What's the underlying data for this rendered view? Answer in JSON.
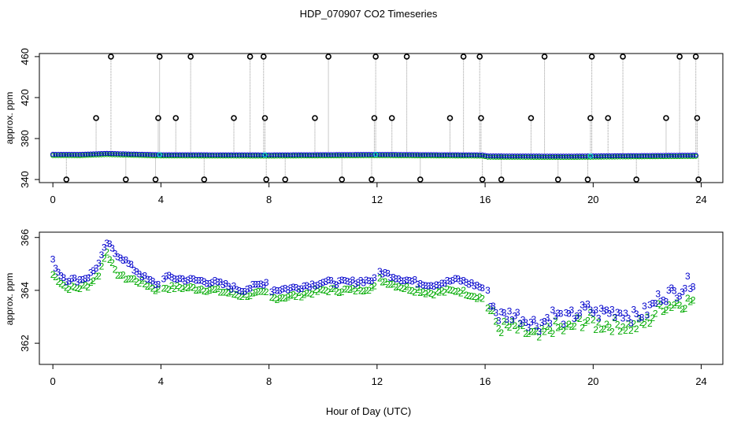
{
  "title": "HDP_070907  CO2 Timeseries",
  "colors": {
    "axis": "#000000",
    "spike": "#000000",
    "blue": "#0000cc",
    "green": "#00aa00",
    "cyan": "#00cccc",
    "stem": "#999999"
  },
  "chart_data": [
    {
      "type": "scatter",
      "panel": "top",
      "title": "HDP_070907  CO2 Timeseries",
      "xlabel": "",
      "ylabel": "approx. ppm",
      "xlim": [
        -0.5,
        24.8
      ],
      "ylim": [
        337,
        463
      ],
      "x_ticks": [
        0,
        4,
        8,
        12,
        16,
        20,
        24
      ],
      "y_ticks": [
        340,
        380,
        420,
        460
      ],
      "x_tick_labels": [
        "0",
        "4",
        "8",
        "12",
        "16",
        "20",
        "24"
      ],
      "y_tick_labels": [
        "340",
        "380",
        "420",
        "460"
      ],
      "baseline": [
        [
          0,
          364.6
        ],
        [
          1,
          364.5
        ],
        [
          2,
          365.5
        ],
        [
          3,
          364.8
        ],
        [
          4,
          364.2
        ],
        [
          8,
          364.0
        ],
        [
          12,
          364.5
        ],
        [
          15.9,
          364.0
        ],
        [
          16.1,
          363.0
        ],
        [
          19,
          362.8
        ],
        [
          20,
          363.0
        ],
        [
          24,
          363.8
        ]
      ],
      "spikes": [
        {
          "x": 0.5,
          "y": 340
        },
        {
          "x": 1.6,
          "y": 400
        },
        {
          "x": 2.15,
          "y": 460
        },
        {
          "x": 2.7,
          "y": 340
        },
        {
          "x": 3.8,
          "y": 340
        },
        {
          "x": 3.9,
          "y": 400
        },
        {
          "x": 3.95,
          "y": 460
        },
        {
          "x": 4.55,
          "y": 400
        },
        {
          "x": 5.1,
          "y": 460
        },
        {
          "x": 5.6,
          "y": 340
        },
        {
          "x": 6.7,
          "y": 400
        },
        {
          "x": 7.3,
          "y": 460
        },
        {
          "x": 7.8,
          "y": 460
        },
        {
          "x": 7.85,
          "y": 400
        },
        {
          "x": 7.9,
          "y": 340
        },
        {
          "x": 8.6,
          "y": 340
        },
        {
          "x": 9.7,
          "y": 400
        },
        {
          "x": 10.2,
          "y": 460
        },
        {
          "x": 10.7,
          "y": 340
        },
        {
          "x": 11.8,
          "y": 340
        },
        {
          "x": 11.9,
          "y": 400
        },
        {
          "x": 11.95,
          "y": 460
        },
        {
          "x": 12.55,
          "y": 400
        },
        {
          "x": 13.1,
          "y": 460
        },
        {
          "x": 13.6,
          "y": 340
        },
        {
          "x": 14.7,
          "y": 400
        },
        {
          "x": 15.2,
          "y": 460
        },
        {
          "x": 15.8,
          "y": 460
        },
        {
          "x": 15.85,
          "y": 400
        },
        {
          "x": 15.9,
          "y": 340
        },
        {
          "x": 16.6,
          "y": 340
        },
        {
          "x": 17.7,
          "y": 400
        },
        {
          "x": 18.2,
          "y": 460
        },
        {
          "x": 18.7,
          "y": 340
        },
        {
          "x": 19.8,
          "y": 340
        },
        {
          "x": 19.9,
          "y": 400
        },
        {
          "x": 19.95,
          "y": 460
        },
        {
          "x": 20.55,
          "y": 400
        },
        {
          "x": 21.1,
          "y": 460
        },
        {
          "x": 21.6,
          "y": 340
        },
        {
          "x": 22.7,
          "y": 400
        },
        {
          "x": 23.2,
          "y": 460
        },
        {
          "x": 23.8,
          "y": 460
        },
        {
          "x": 23.85,
          "y": 400
        },
        {
          "x": 23.9,
          "y": 340
        }
      ],
      "series": [
        {
          "name": "3",
          "color": "#0000cc"
        },
        {
          "name": "2",
          "color": "#00aa00"
        }
      ]
    },
    {
      "type": "scatter",
      "panel": "bottom",
      "xlabel": "Hour of Day (UTC)",
      "ylabel": "approx. ppm",
      "xlim": [
        -0.5,
        24.8
      ],
      "ylim": [
        361.2,
        366.2
      ],
      "x_ticks": [
        0,
        4,
        8,
        12,
        16,
        20,
        24
      ],
      "y_ticks": [
        362,
        364,
        366
      ],
      "x_tick_labels": [
        "0",
        "4",
        "8",
        "12",
        "16",
        "20",
        "24"
      ],
      "y_tick_labels": [
        "362",
        "364",
        "366"
      ],
      "gaps": [
        [
          4.0,
          4.1
        ],
        [
          7.95,
          8.0
        ],
        [
          11.95,
          12.0
        ],
        [
          15.95,
          16.0
        ],
        [
          19.95,
          20.0
        ]
      ],
      "series": [
        {
          "name": "3",
          "color": "#0000cc",
          "values": [
            [
              0,
              365.1
            ],
            [
              0.2,
              364.7
            ],
            [
              0.5,
              364.4
            ],
            [
              1,
              364.4
            ],
            [
              1.3,
              364.5
            ],
            [
              1.7,
              365.0
            ],
            [
              2.0,
              365.8
            ],
            [
              2.3,
              365.4
            ],
            [
              2.6,
              365.2
            ],
            [
              3.0,
              364.8
            ],
            [
              3.5,
              364.4
            ],
            [
              3.9,
              364.2
            ],
            [
              4.1,
              364.5
            ],
            [
              5,
              364.4
            ],
            [
              6,
              364.3
            ],
            [
              7,
              364.0
            ],
            [
              7.9,
              364.3
            ],
            [
              8.1,
              364.0
            ],
            [
              9,
              364.1
            ],
            [
              10,
              364.3
            ],
            [
              11,
              364.3
            ],
            [
              11.9,
              364.4
            ],
            [
              12.1,
              364.7
            ],
            [
              13,
              364.4
            ],
            [
              14,
              364.2
            ],
            [
              15,
              364.4
            ],
            [
              15.9,
              364.1
            ],
            [
              16.1,
              363.8
            ],
            [
              16.5,
              363.0
            ],
            [
              17,
              363.1
            ],
            [
              17.5,
              362.9
            ],
            [
              18,
              362.7
            ],
            [
              18.5,
              363.1
            ],
            [
              19,
              362.9
            ],
            [
              19.5,
              363.2
            ],
            [
              19.9,
              363.3
            ],
            [
              20.1,
              363.1
            ],
            [
              20.5,
              363.2
            ],
            [
              21,
              363.2
            ],
            [
              21.5,
              363.0
            ],
            [
              22,
              363.2
            ],
            [
              22.5,
              363.8
            ],
            [
              23,
              363.9
            ],
            [
              23.7,
              364.4
            ]
          ]
        },
        {
          "name": "2",
          "color": "#00aa00",
          "values": [
            [
              0,
              364.6
            ],
            [
              0.2,
              364.4
            ],
            [
              0.5,
              364.1
            ],
            [
              1,
              364.1
            ],
            [
              1.3,
              364.2
            ],
            [
              1.7,
              364.6
            ],
            [
              2.0,
              365.5
            ],
            [
              2.3,
              364.7
            ],
            [
              2.6,
              364.5
            ],
            [
              3.0,
              364.4
            ],
            [
              3.5,
              364.2
            ],
            [
              3.9,
              364.0
            ],
            [
              4.1,
              364.1
            ],
            [
              5,
              364.1
            ],
            [
              6,
              364.0
            ],
            [
              7,
              363.8
            ],
            [
              7.9,
              363.9
            ],
            [
              8.1,
              363.7
            ],
            [
              9,
              363.8
            ],
            [
              10,
              364.0
            ],
            [
              11,
              364.0
            ],
            [
              11.9,
              364.1
            ],
            [
              12.1,
              364.4
            ],
            [
              13,
              364.1
            ],
            [
              14,
              363.9
            ],
            [
              15,
              364.0
            ],
            [
              15.9,
              363.7
            ],
            [
              16.1,
              363.4
            ],
            [
              16.5,
              362.6
            ],
            [
              17,
              362.6
            ],
            [
              17.5,
              362.4
            ],
            [
              18,
              362.2
            ],
            [
              18.5,
              362.6
            ],
            [
              19,
              362.5
            ],
            [
              19.5,
              362.8
            ],
            [
              19.9,
              362.9
            ],
            [
              20.1,
              362.7
            ],
            [
              20.5,
              362.7
            ],
            [
              21,
              362.7
            ],
            [
              21.5,
              362.6
            ],
            [
              22,
              362.8
            ],
            [
              22.5,
              363.4
            ],
            [
              23,
              363.5
            ],
            [
              23.7,
              363.6
            ]
          ]
        }
      ]
    }
  ]
}
